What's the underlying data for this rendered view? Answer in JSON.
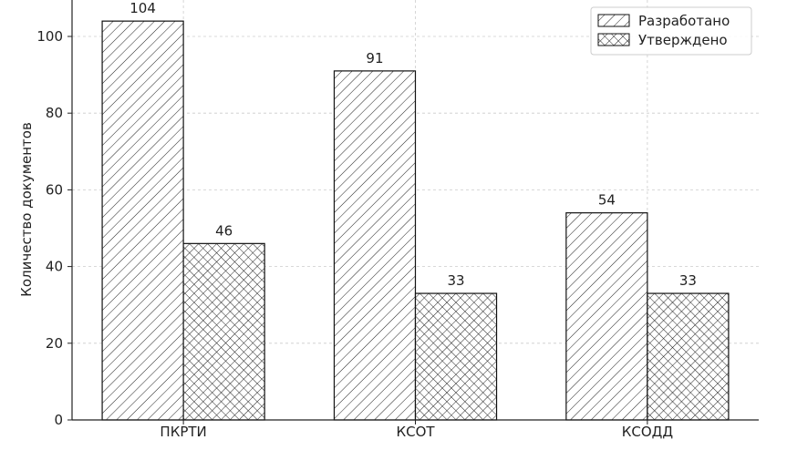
{
  "chart_data": {
    "type": "bar",
    "y_label": "Количество документов",
    "categories": [
      "ПКРТИ",
      "КСОТ",
      "КСОДД"
    ],
    "series": [
      {
        "name": "Разработано",
        "color": "#ffffff",
        "hatch": "///",
        "values": [
          104,
          91,
          54
        ]
      },
      {
        "name": "Утверждено",
        "color": "#ffffff",
        "hatch": "xxx",
        "values": [
          46,
          33,
          33
        ]
      }
    ],
    "ylim": [
      0,
      109.5
    ],
    "yticks": [
      0,
      20,
      40,
      60,
      80,
      100
    ],
    "grid": true,
    "legend": "upper right"
  }
}
